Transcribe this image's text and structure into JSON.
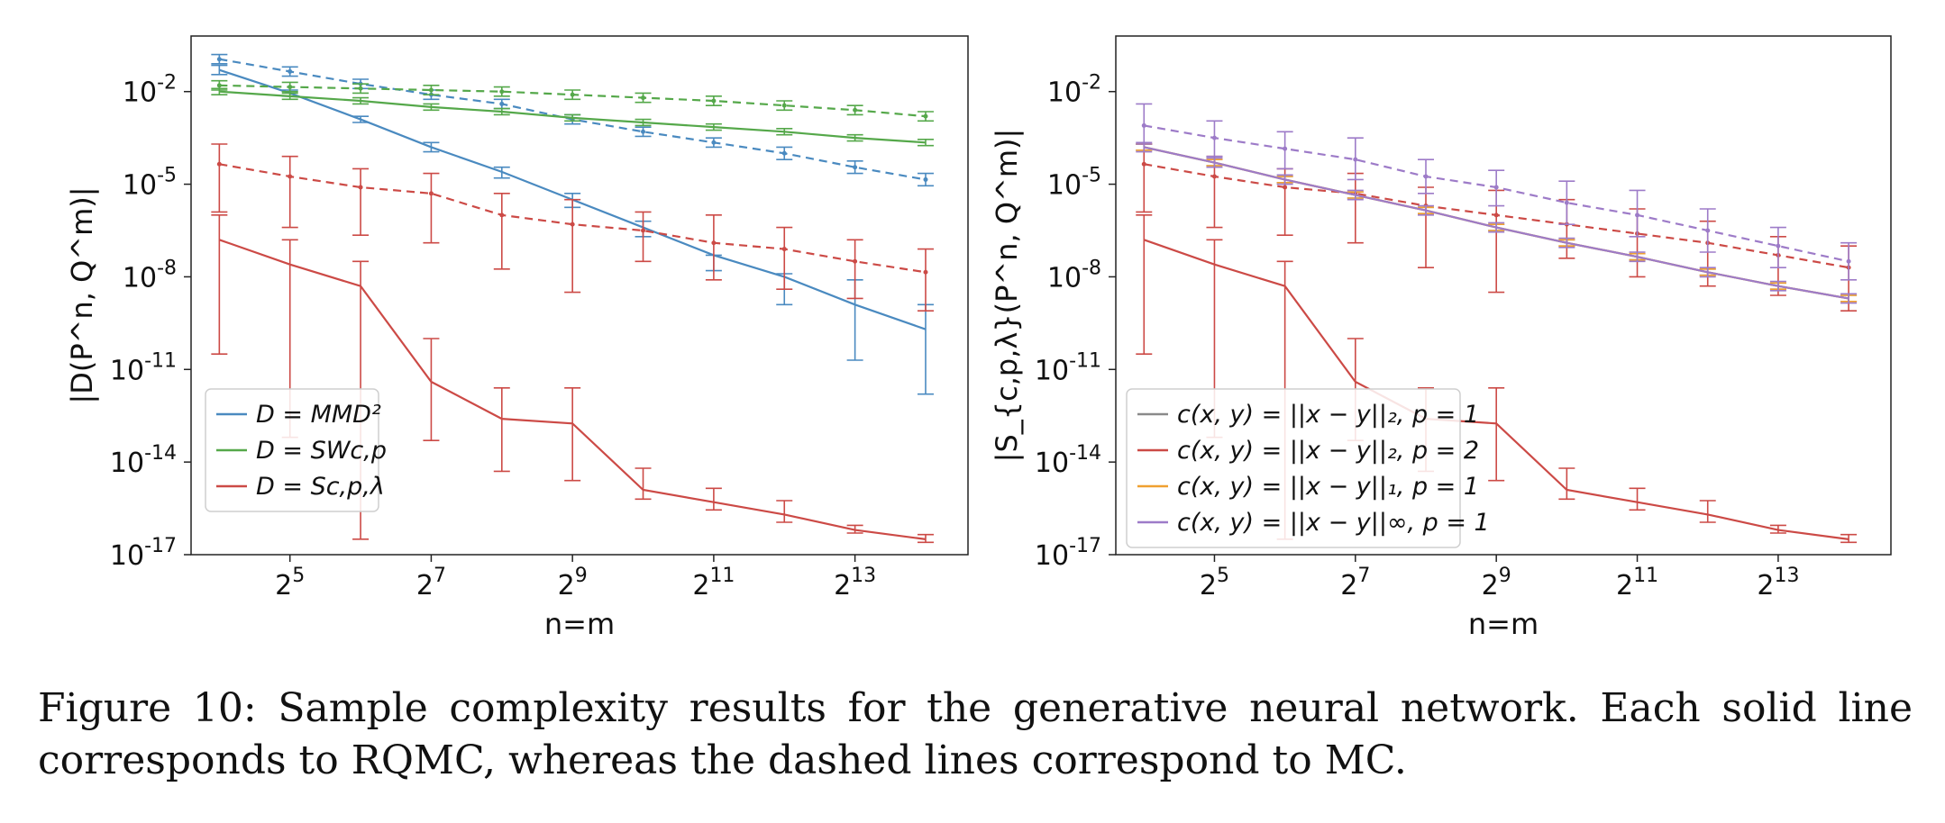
{
  "figure": {
    "caption": "Figure 10: Sample complexity results for the generative neural network. Each solid line corresponds to RQMC, whereas the dashed lines correspond to MC."
  },
  "chart_data": [
    {
      "type": "line",
      "panel": "left",
      "ylabel": "|D(P^n, Q^m)|",
      "xlabel": "n=m",
      "x_scale": "log2",
      "y_scale": "log10",
      "x_ticks": [
        "2^5",
        "2^7",
        "2^9",
        "2^11",
        "2^13"
      ],
      "y_ticks": [
        "10^-2",
        "10^-5",
        "10^-8",
        "10^-11",
        "10^-14",
        "10^-17"
      ],
      "ylim_log10": [
        -17,
        -0.2
      ],
      "xlim_log2": [
        3.6,
        14.6
      ],
      "grid": false,
      "legend_position": "lower-left",
      "x": [
        16,
        32,
        64,
        128,
        256,
        512,
        1024,
        2048,
        4096,
        8192,
        16384
      ],
      "series": [
        {
          "name": "D = MMD^2",
          "color": "#4a8ac0",
          "style": "solid",
          "log10_values": [
            -1.3,
            -2.05,
            -2.9,
            -3.8,
            -4.6,
            -5.5,
            -6.4,
            -7.3,
            -8.0,
            -8.9,
            -9.7
          ],
          "log10_err_low": [
            -1.45,
            -2.15,
            -3.0,
            -3.95,
            -4.8,
            -5.75,
            -6.7,
            -7.8,
            -8.9,
            -10.7,
            -11.8
          ],
          "log10_err_high": [
            -1.15,
            -1.95,
            -2.8,
            -3.65,
            -4.45,
            -5.3,
            -6.2,
            -7.3,
            -7.9,
            -8.1,
            -8.9
          ]
        },
        {
          "name": "D = MMD^2 (MC)",
          "color": "#4a8ac0",
          "style": "dashed",
          "log10_values": [
            -0.95,
            -1.35,
            -1.75,
            -2.1,
            -2.4,
            -2.9,
            -3.3,
            -3.65,
            -4.0,
            -4.45,
            -4.85
          ],
          "log10_err_low": [
            -1.1,
            -1.5,
            -1.9,
            -2.25,
            -2.55,
            -3.05,
            -3.45,
            -3.8,
            -4.2,
            -4.65,
            -5.05
          ],
          "log10_err_high": [
            -0.8,
            -1.2,
            -1.6,
            -1.95,
            -2.25,
            -2.75,
            -3.15,
            -3.5,
            -3.8,
            -4.25,
            -4.65
          ]
        },
        {
          "name": "D = SW_{c,p}",
          "color": "#55a84a",
          "style": "solid",
          "log10_values": [
            -2.0,
            -2.15,
            -2.3,
            -2.5,
            -2.65,
            -2.85,
            -3.0,
            -3.15,
            -3.3,
            -3.5,
            -3.65
          ],
          "log10_err_low": [
            -2.1,
            -2.25,
            -2.4,
            -2.6,
            -2.75,
            -2.95,
            -3.1,
            -3.25,
            -3.4,
            -3.6,
            -3.75
          ],
          "log10_err_high": [
            -1.9,
            -2.05,
            -2.2,
            -2.4,
            -2.55,
            -2.75,
            -2.9,
            -3.05,
            -3.2,
            -3.4,
            -3.55
          ]
        },
        {
          "name": "D = SW_{c,p} (MC)",
          "color": "#55a84a",
          "style": "dashed",
          "log10_values": [
            -1.8,
            -1.85,
            -1.9,
            -1.95,
            -2.0,
            -2.1,
            -2.2,
            -2.3,
            -2.45,
            -2.6,
            -2.8
          ],
          "log10_err_low": [
            -1.95,
            -2.0,
            -2.05,
            -2.1,
            -2.15,
            -2.25,
            -2.35,
            -2.45,
            -2.6,
            -2.75,
            -2.95
          ],
          "log10_err_high": [
            -1.65,
            -1.7,
            -1.75,
            -1.8,
            -1.85,
            -1.95,
            -2.05,
            -2.15,
            -2.3,
            -2.45,
            -2.65
          ]
        },
        {
          "name": "D = S_{c,p,λ}",
          "color": "#cc4a46",
          "style": "solid",
          "log10_values": [
            -6.8,
            -7.6,
            -8.3,
            -11.4,
            -12.6,
            -12.75,
            -14.9,
            -15.3,
            -15.7,
            -16.2,
            -16.5
          ],
          "log10_err_low": [
            -10.5,
            -13.2,
            -16.5,
            -13.3,
            -14.3,
            -14.6,
            -15.2,
            -15.55,
            -15.95,
            -16.3,
            -16.6
          ],
          "log10_err_high": [
            -6.0,
            -6.8,
            -7.5,
            -10.0,
            -11.6,
            -11.6,
            -14.2,
            -14.85,
            -15.25,
            -16.05,
            -16.35
          ]
        },
        {
          "name": "D = S_{c,p,λ} (MC)",
          "color": "#cc4a46",
          "style": "dashed",
          "log10_values": [
            -4.35,
            -4.75,
            -5.1,
            -5.3,
            -6.0,
            -6.3,
            -6.5,
            -6.9,
            -7.1,
            -7.5,
            -7.85
          ],
          "log10_err_low": [
            -5.9,
            -6.4,
            -6.65,
            -6.9,
            -7.75,
            -8.5,
            -7.5,
            -8.1,
            -8.4,
            -8.7,
            -9.1
          ],
          "log10_err_high": [
            -3.7,
            -4.1,
            -4.5,
            -4.65,
            -5.3,
            -5.5,
            -5.9,
            -6.0,
            -6.4,
            -6.8,
            -7.1
          ]
        }
      ],
      "legend": [
        {
          "label": "D = MMD²",
          "color": "#4a8ac0"
        },
        {
          "label": "D = SWc,p",
          "color": "#55a84a"
        },
        {
          "label": "D = Sc,p,λ",
          "color": "#cc4a46"
        }
      ]
    },
    {
      "type": "line",
      "panel": "right",
      "ylabel": "|S_{c,p,λ}(P^n, Q^m)|",
      "xlabel": "n=m",
      "x_scale": "log2",
      "y_scale": "log10",
      "x_ticks": [
        "2^5",
        "2^7",
        "2^9",
        "2^11",
        "2^13"
      ],
      "y_ticks": [
        "10^-2",
        "10^-5",
        "10^-8",
        "10^-11",
        "10^-14",
        "10^-17"
      ],
      "ylim_log10": [
        -17,
        -0.2
      ],
      "xlim_log2": [
        3.6,
        14.6
      ],
      "grid": false,
      "legend_position": "lower-left",
      "x": [
        16,
        32,
        64,
        128,
        256,
        512,
        1024,
        2048,
        4096,
        8192,
        16384
      ],
      "series": [
        {
          "name": "c(x,y)=||x-y||_2, p=1",
          "color": "#8a8a8a",
          "style": "solid",
          "log10_values": [
            -3.8,
            -4.3,
            -4.85,
            -5.35,
            -5.85,
            -6.4,
            -6.9,
            -7.35,
            -7.85,
            -8.3,
            -8.7
          ],
          "log10_err_low": [
            -3.9,
            -4.4,
            -4.95,
            -5.45,
            -5.95,
            -6.5,
            -7.0,
            -7.45,
            -7.95,
            -8.4,
            -8.8
          ],
          "log10_err_high": [
            -3.7,
            -4.2,
            -4.75,
            -5.25,
            -5.75,
            -6.3,
            -6.8,
            -7.25,
            -7.75,
            -8.2,
            -8.6
          ]
        },
        {
          "name": "c(x,y)=||x-y||_2, p=2",
          "color": "#cc4a46",
          "style": "solid",
          "log10_values": [
            -6.8,
            -7.6,
            -8.3,
            -11.4,
            -12.6,
            -12.75,
            -14.9,
            -15.3,
            -15.7,
            -16.2,
            -16.5
          ],
          "log10_err_low": [
            -10.5,
            -13.2,
            -16.5,
            -13.3,
            -14.3,
            -14.6,
            -15.2,
            -15.55,
            -15.95,
            -16.3,
            -16.6
          ],
          "log10_err_high": [
            -6.0,
            -6.8,
            -7.5,
            -10.0,
            -11.6,
            -11.6,
            -14.2,
            -14.85,
            -15.25,
            -16.05,
            -16.35
          ]
        },
        {
          "name": "c(x,y)=||x-y||_2, p=2 (MC)",
          "color": "#cc4a46",
          "style": "dashed",
          "log10_values": [
            -4.35,
            -4.75,
            -5.1,
            -5.3,
            -5.7,
            -6.0,
            -6.3,
            -6.6,
            -6.9,
            -7.3,
            -7.7
          ],
          "log10_err_low": [
            -5.9,
            -6.4,
            -6.65,
            -6.9,
            -7.7,
            -8.5,
            -7.4,
            -8.0,
            -8.3,
            -8.6,
            -9.1
          ],
          "log10_err_high": [
            -3.7,
            -4.1,
            -4.5,
            -4.65,
            -5.1,
            -5.2,
            -5.5,
            -5.8,
            -6.2,
            -6.7,
            -7.0
          ]
        },
        {
          "name": "c(x,y)=||x-y||_1, p=1",
          "color": "#f0a030",
          "style": "solid",
          "log10_values": [
            -3.8,
            -4.3,
            -4.85,
            -5.35,
            -5.85,
            -6.4,
            -6.9,
            -7.35,
            -7.85,
            -8.3,
            -8.7
          ],
          "log10_err_low": [
            -3.9,
            -4.4,
            -4.95,
            -5.45,
            -5.95,
            -6.5,
            -7.0,
            -7.45,
            -7.95,
            -8.4,
            -8.8
          ],
          "log10_err_high": [
            -3.7,
            -4.2,
            -4.75,
            -5.25,
            -5.75,
            -6.3,
            -6.8,
            -7.25,
            -7.75,
            -8.2,
            -8.6
          ]
        },
        {
          "name": "c(x,y)=||x-y||_∞, p=1",
          "color": "#9d7bc8",
          "style": "solid",
          "log10_values": [
            -3.8,
            -4.3,
            -4.85,
            -5.35,
            -5.85,
            -6.4,
            -6.9,
            -7.35,
            -7.85,
            -8.3,
            -8.7
          ],
          "log10_err_low": [
            -3.95,
            -4.45,
            -5.0,
            -5.5,
            -6.0,
            -6.55,
            -7.05,
            -7.5,
            -8.0,
            -8.45,
            -8.85
          ],
          "log10_err_high": [
            -3.65,
            -4.15,
            -4.7,
            -5.2,
            -5.7,
            -6.25,
            -6.75,
            -7.2,
            -7.7,
            -8.15,
            -8.55
          ]
        },
        {
          "name": "c(x,y)=||x-y||_∞, p=1 (MC)",
          "color": "#9d7bc8",
          "style": "dashed",
          "log10_values": [
            -3.1,
            -3.5,
            -3.85,
            -4.2,
            -4.75,
            -5.1,
            -5.6,
            -6.0,
            -6.5,
            -7.0,
            -7.5
          ],
          "log10_err_low": [
            -3.7,
            -4.1,
            -4.5,
            -4.85,
            -5.3,
            -5.7,
            -6.3,
            -6.7,
            -7.2,
            -7.7,
            -8.1
          ],
          "log10_err_high": [
            -2.4,
            -2.95,
            -3.3,
            -3.5,
            -4.2,
            -4.55,
            -4.9,
            -5.2,
            -5.8,
            -6.4,
            -6.9
          ]
        }
      ],
      "legend": [
        {
          "label": "c(x, y) = ||x − y||₂, p = 1",
          "color": "#8a8a8a"
        },
        {
          "label": "c(x, y) = ||x − y||₂, p = 2",
          "color": "#cc4a46"
        },
        {
          "label": "c(x, y) = ||x − y||₁, p = 1",
          "color": "#f0a030"
        },
        {
          "label": "c(x, y) = ||x − y||∞, p = 1",
          "color": "#9d7bc8"
        }
      ]
    }
  ]
}
